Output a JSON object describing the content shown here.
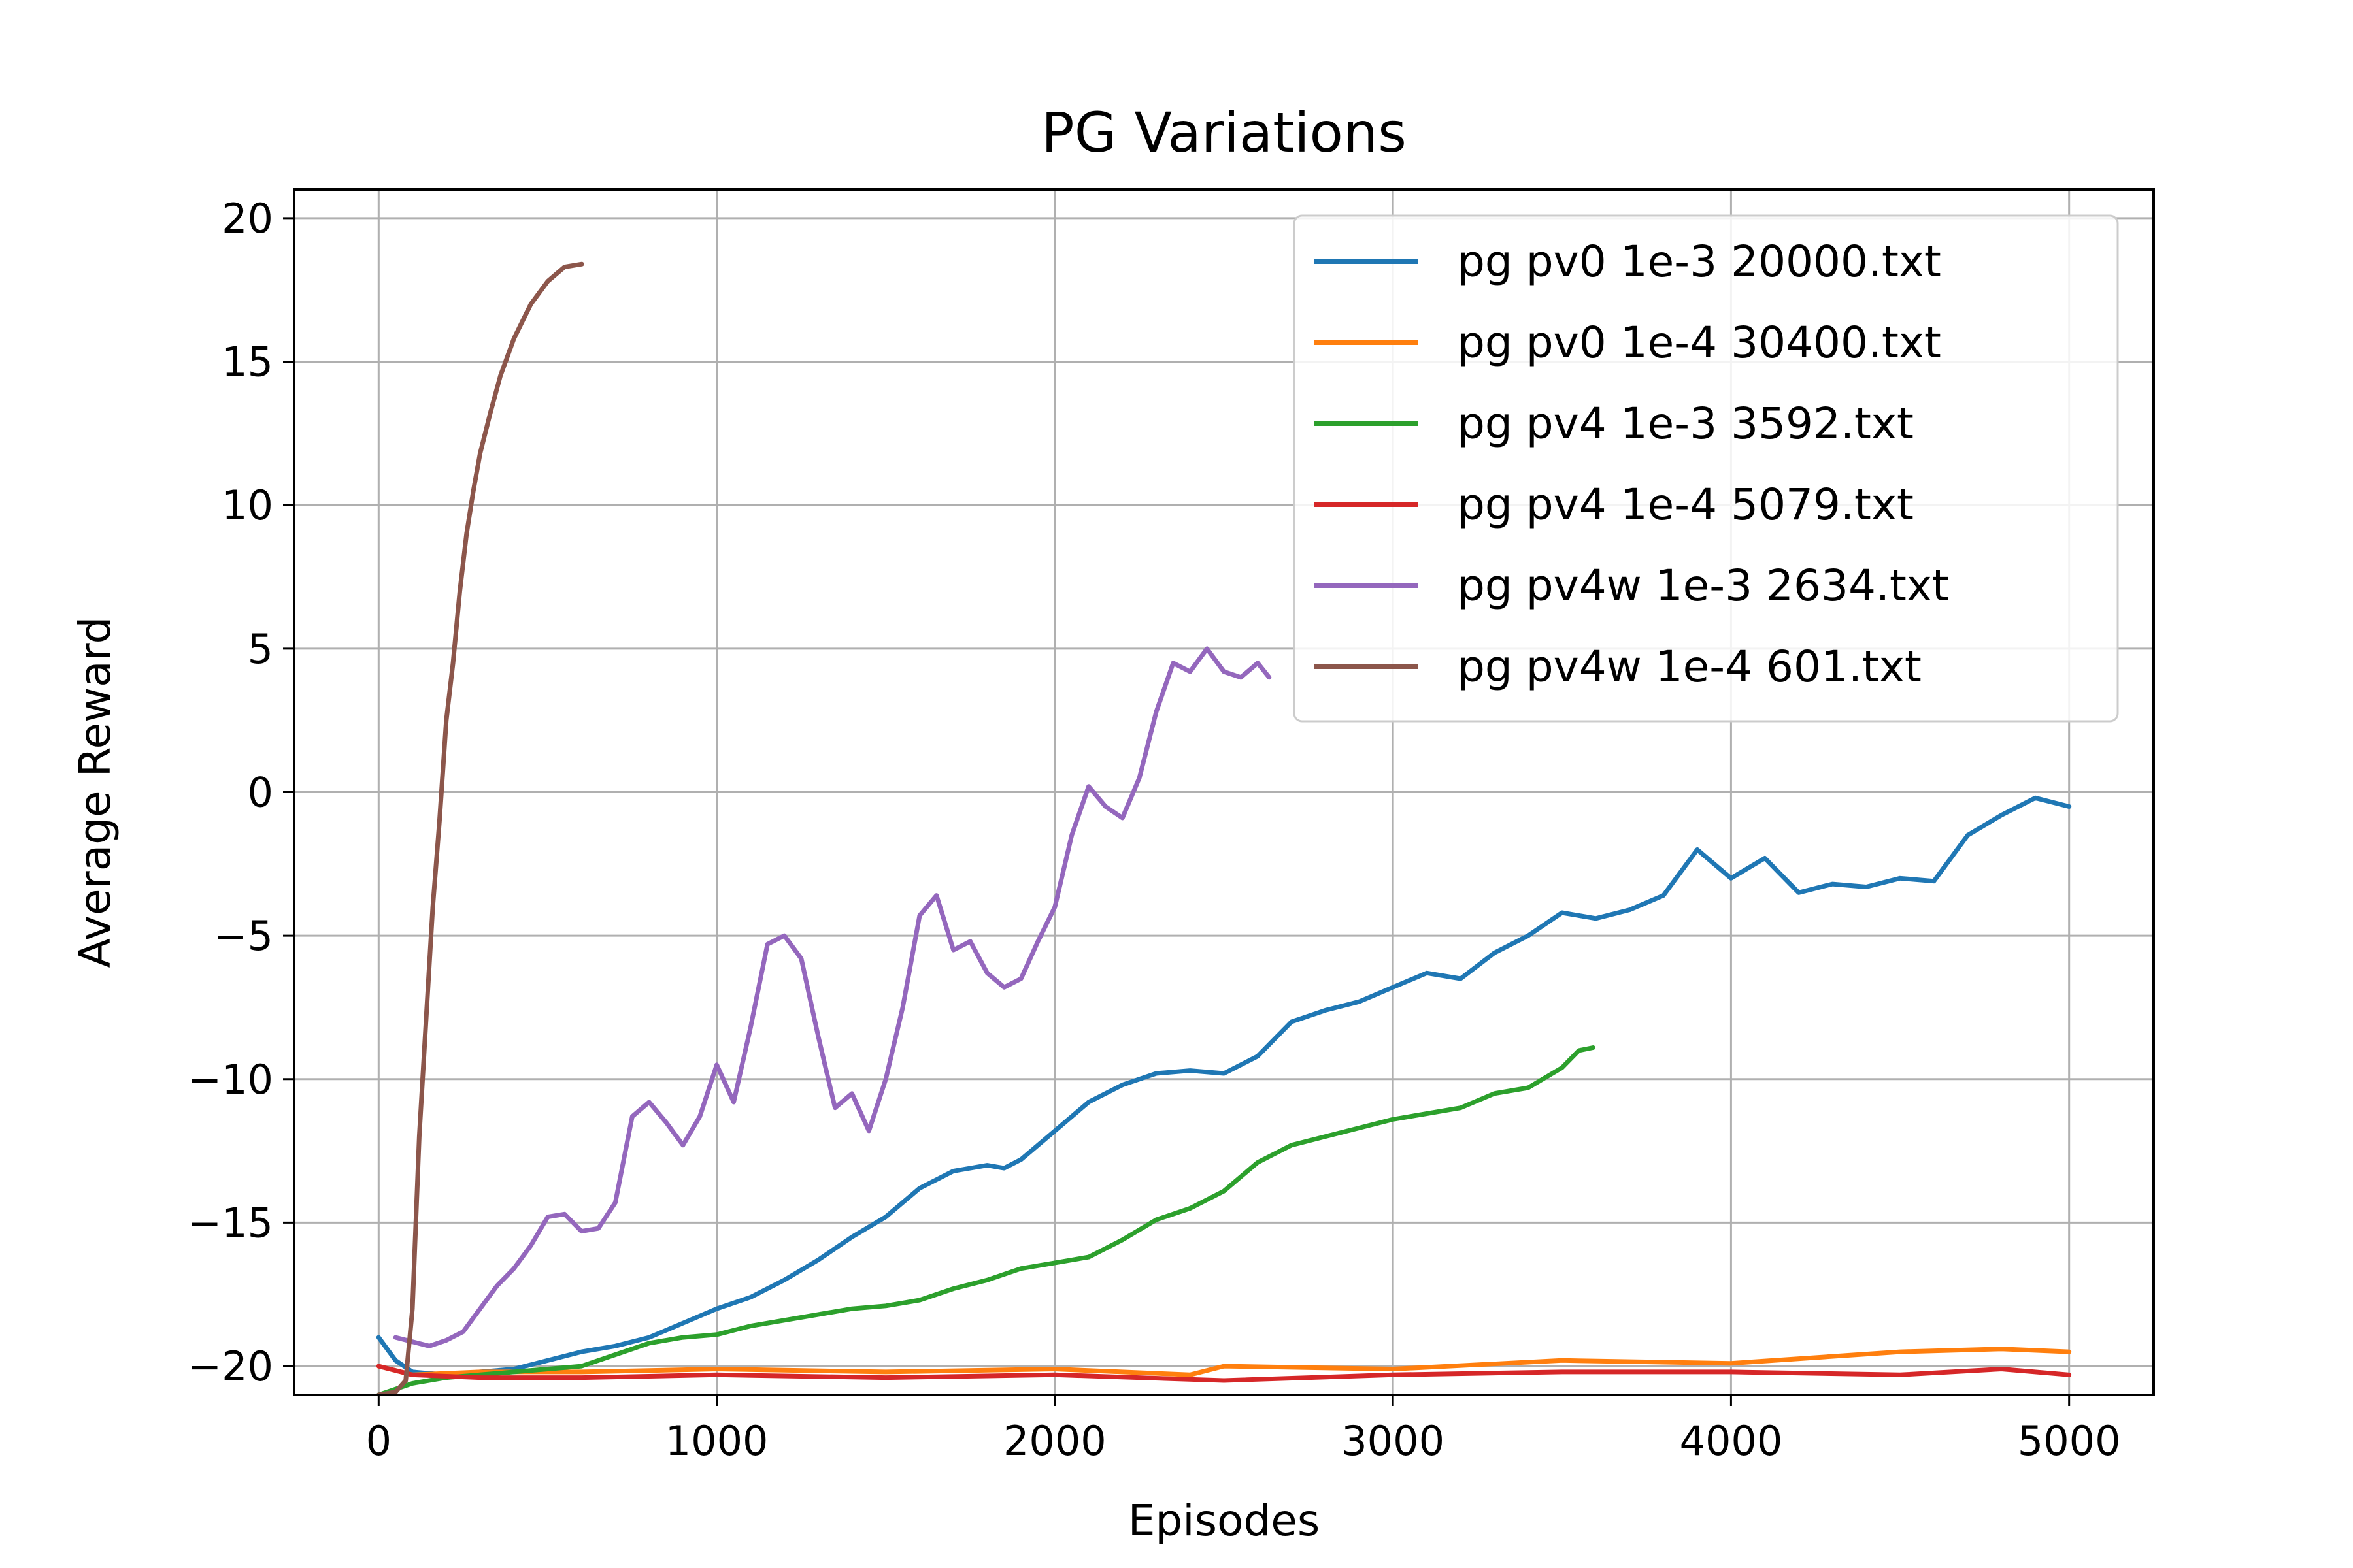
{
  "chart_data": {
    "type": "line",
    "title": "PG Variations",
    "xlabel": "Episodes",
    "ylabel": "Average Reward",
    "xlim": [
      -250,
      5250
    ],
    "ylim": [
      -21,
      21
    ],
    "xticks": [
      0,
      1000,
      2000,
      3000,
      4000,
      5000
    ],
    "xtick_labels": [
      "0",
      "1000",
      "2000",
      "3000",
      "4000",
      "5000"
    ],
    "yticks": [
      -20,
      -15,
      -10,
      -5,
      0,
      5,
      10,
      15,
      20
    ],
    "ytick_labels": [
      "−20",
      "−15",
      "−10",
      "−5",
      "0",
      "5",
      "10",
      "15",
      "20"
    ],
    "grid": true,
    "legend_position": "top-right",
    "series": [
      {
        "name": "pg pv0 1e-3 20000.txt",
        "color": "#1f77b4",
        "points": [
          [
            0,
            -19
          ],
          [
            50,
            -19.8
          ],
          [
            100,
            -20.2
          ],
          [
            200,
            -20.3
          ],
          [
            300,
            -20.2
          ],
          [
            400,
            -20.1
          ],
          [
            500,
            -19.8
          ],
          [
            600,
            -19.5
          ],
          [
            700,
            -19.3
          ],
          [
            800,
            -19
          ],
          [
            900,
            -18.5
          ],
          [
            1000,
            -18
          ],
          [
            1100,
            -17.6
          ],
          [
            1200,
            -17
          ],
          [
            1300,
            -16.3
          ],
          [
            1400,
            -15.5
          ],
          [
            1500,
            -14.8
          ],
          [
            1600,
            -13.8
          ],
          [
            1700,
            -13.2
          ],
          [
            1800,
            -13
          ],
          [
            1850,
            -13.1
          ],
          [
            1900,
            -12.8
          ],
          [
            2000,
            -11.8
          ],
          [
            2100,
            -10.8
          ],
          [
            2200,
            -10.2
          ],
          [
            2300,
            -9.8
          ],
          [
            2400,
            -9.7
          ],
          [
            2500,
            -9.8
          ],
          [
            2600,
            -9.2
          ],
          [
            2700,
            -8
          ],
          [
            2800,
            -7.6
          ],
          [
            2900,
            -7.3
          ],
          [
            3000,
            -6.8
          ],
          [
            3100,
            -6.3
          ],
          [
            3200,
            -6.5
          ],
          [
            3300,
            -5.6
          ],
          [
            3400,
            -5
          ],
          [
            3500,
            -4.2
          ],
          [
            3600,
            -4.4
          ],
          [
            3700,
            -4.1
          ],
          [
            3800,
            -3.6
          ],
          [
            3900,
            -2
          ],
          [
            4000,
            -3
          ],
          [
            4100,
            -2.3
          ],
          [
            4200,
            -3.5
          ],
          [
            4300,
            -3.2
          ],
          [
            4400,
            -3.3
          ],
          [
            4500,
            -3.0
          ],
          [
            4600,
            -3.1
          ],
          [
            4700,
            -1.5
          ],
          [
            4800,
            -0.8
          ],
          [
            4900,
            -0.2
          ],
          [
            5000,
            -0.5
          ]
        ]
      },
      {
        "name": "pg pv0 1e-4 30400.txt",
        "color": "#ff7f0e",
        "points": [
          [
            0,
            -20
          ],
          [
            100,
            -20.3
          ],
          [
            300,
            -20.2
          ],
          [
            600,
            -20.2
          ],
          [
            1000,
            -20.1
          ],
          [
            1500,
            -20.2
          ],
          [
            2000,
            -20.1
          ],
          [
            2400,
            -20.3
          ],
          [
            2500,
            -20
          ],
          [
            3000,
            -20.1
          ],
          [
            3500,
            -19.8
          ],
          [
            4000,
            -19.9
          ],
          [
            4500,
            -19.5
          ],
          [
            4800,
            -19.4
          ],
          [
            5000,
            -19.5
          ]
        ]
      },
      {
        "name": "pg pv4 1e-3 3592.txt",
        "color": "#2ca02c",
        "points": [
          [
            0,
            -21
          ],
          [
            100,
            -20.6
          ],
          [
            200,
            -20.4
          ],
          [
            300,
            -20.3
          ],
          [
            400,
            -20.2
          ],
          [
            600,
            -20
          ],
          [
            700,
            -19.6
          ],
          [
            800,
            -19.2
          ],
          [
            900,
            -19
          ],
          [
            1000,
            -18.9
          ],
          [
            1100,
            -18.6
          ],
          [
            1200,
            -18.4
          ],
          [
            1300,
            -18.2
          ],
          [
            1400,
            -18
          ],
          [
            1500,
            -17.9
          ],
          [
            1600,
            -17.7
          ],
          [
            1700,
            -17.3
          ],
          [
            1800,
            -17
          ],
          [
            1900,
            -16.6
          ],
          [
            2000,
            -16.4
          ],
          [
            2100,
            -16.2
          ],
          [
            2200,
            -15.6
          ],
          [
            2300,
            -14.9
          ],
          [
            2400,
            -14.5
          ],
          [
            2500,
            -13.9
          ],
          [
            2600,
            -12.9
          ],
          [
            2700,
            -12.3
          ],
          [
            2800,
            -12
          ],
          [
            2900,
            -11.7
          ],
          [
            3000,
            -11.4
          ],
          [
            3100,
            -11.2
          ],
          [
            3200,
            -11
          ],
          [
            3300,
            -10.5
          ],
          [
            3400,
            -10.3
          ],
          [
            3500,
            -9.6
          ],
          [
            3550,
            -9
          ],
          [
            3592,
            -8.9
          ]
        ]
      },
      {
        "name": "pg pv4 1e-4 5079.txt",
        "color": "#d62728",
        "points": [
          [
            0,
            -20
          ],
          [
            100,
            -20.3
          ],
          [
            300,
            -20.4
          ],
          [
            600,
            -20.4
          ],
          [
            1000,
            -20.3
          ],
          [
            1500,
            -20.4
          ],
          [
            2000,
            -20.3
          ],
          [
            2500,
            -20.5
          ],
          [
            3000,
            -20.3
          ],
          [
            3500,
            -20.2
          ],
          [
            4000,
            -20.2
          ],
          [
            4500,
            -20.3
          ],
          [
            4800,
            -20.1
          ],
          [
            5000,
            -20.3
          ]
        ]
      },
      {
        "name": "pg pv4w 1e-3 2634.txt",
        "color": "#9467bd",
        "points": [
          [
            50,
            -19
          ],
          [
            150,
            -19.3
          ],
          [
            200,
            -19.1
          ],
          [
            250,
            -18.8
          ],
          [
            300,
            -18
          ],
          [
            350,
            -17.2
          ],
          [
            400,
            -16.6
          ],
          [
            450,
            -15.8
          ],
          [
            500,
            -14.8
          ],
          [
            550,
            -14.7
          ],
          [
            600,
            -15.3
          ],
          [
            650,
            -15.2
          ],
          [
            700,
            -14.3
          ],
          [
            750,
            -11.3
          ],
          [
            800,
            -10.8
          ],
          [
            850,
            -11.5
          ],
          [
            900,
            -12.3
          ],
          [
            950,
            -11.3
          ],
          [
            1000,
            -9.5
          ],
          [
            1050,
            -10.8
          ],
          [
            1100,
            -8.2
          ],
          [
            1150,
            -5.3
          ],
          [
            1200,
            -5
          ],
          [
            1250,
            -5.8
          ],
          [
            1300,
            -8.5
          ],
          [
            1350,
            -11
          ],
          [
            1400,
            -10.5
          ],
          [
            1450,
            -11.8
          ],
          [
            1500,
            -10
          ],
          [
            1550,
            -7.5
          ],
          [
            1600,
            -4.3
          ],
          [
            1650,
            -3.6
          ],
          [
            1700,
            -5.5
          ],
          [
            1750,
            -5.2
          ],
          [
            1800,
            -6.3
          ],
          [
            1850,
            -6.8
          ],
          [
            1900,
            -6.5
          ],
          [
            1950,
            -5.2
          ],
          [
            2000,
            -4
          ],
          [
            2050,
            -1.5
          ],
          [
            2100,
            0.2
          ],
          [
            2150,
            -0.5
          ],
          [
            2200,
            -0.9
          ],
          [
            2250,
            0.5
          ],
          [
            2300,
            2.8
          ],
          [
            2350,
            4.5
          ],
          [
            2400,
            4.2
          ],
          [
            2450,
            5
          ],
          [
            2500,
            4.2
          ],
          [
            2550,
            4
          ],
          [
            2600,
            4.5
          ],
          [
            2634,
            4
          ]
        ]
      },
      {
        "name": "pg pv4w 1e-4 601.txt",
        "color": "#8c564b",
        "points": [
          [
            0,
            -21
          ],
          [
            50,
            -20.9
          ],
          [
            80,
            -20.5
          ],
          [
            100,
            -18
          ],
          [
            120,
            -12
          ],
          [
            140,
            -8
          ],
          [
            160,
            -4
          ],
          [
            180,
            -1
          ],
          [
            200,
            2.5
          ],
          [
            220,
            4.5
          ],
          [
            240,
            7
          ],
          [
            260,
            9
          ],
          [
            280,
            10.5
          ],
          [
            300,
            11.8
          ],
          [
            330,
            13.2
          ],
          [
            360,
            14.5
          ],
          [
            400,
            15.8
          ],
          [
            450,
            17
          ],
          [
            500,
            17.8
          ],
          [
            550,
            18.3
          ],
          [
            601,
            18.4
          ]
        ]
      }
    ]
  }
}
